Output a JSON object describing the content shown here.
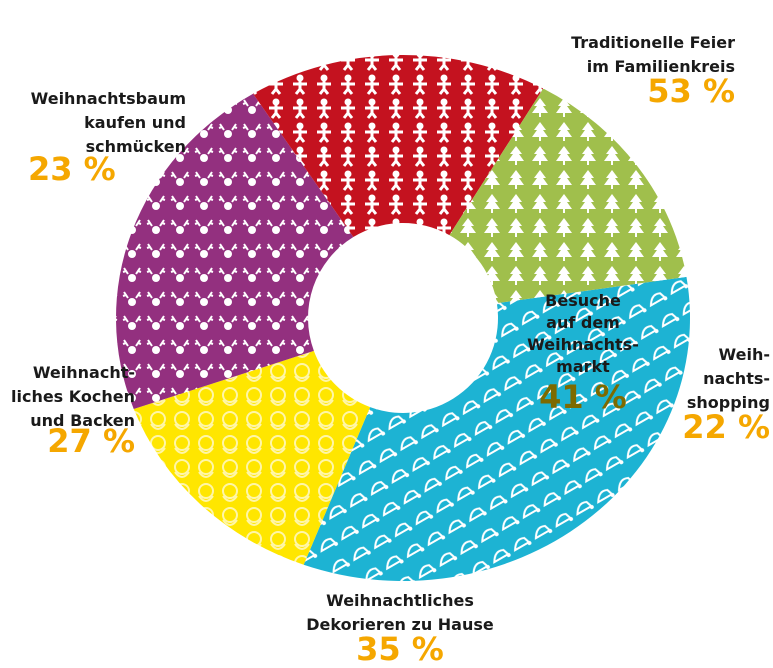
{
  "chart_data": {
    "type": "donut",
    "categories": [
      "Traditionelle Feier\nim Familienkreis",
      "Weih-\nnachts-\nshopping",
      "Weihnachtliches\nDekorieren zu Hause",
      "Weihnacht-\nliches Kochen\nund Backen",
      "Weihnachtsbaum\nkaufen und\nschmücken"
    ],
    "values": [
      53,
      22,
      35,
      27,
      23
    ],
    "value_labels": [
      "53 %",
      "22 %",
      "35 %",
      "27 %",
      "23 %"
    ],
    "colors": [
      "#1db3d3",
      "#ffe600",
      "#93307f",
      "#c4121f",
      "#a0bf4c"
    ],
    "value_label_color": "#f5a700",
    "center_annotation": {
      "text": "Besuche\nauf dem\nWeihnachts-\nmarkt",
      "value": 41,
      "value_label": "41 %",
      "color": "#7d6a00"
    }
  }
}
